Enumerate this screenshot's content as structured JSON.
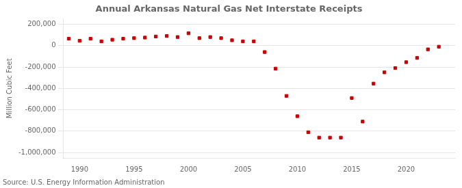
{
  "chart_data": {
    "type": "scatter",
    "title": "Annual Arkansas Natural Gas Net Interstate Receipts",
    "ylabel": "Million Cubic Feet",
    "annotation": "Source: U.S. Energy Information Administration",
    "x": [
      1989,
      1990,
      1991,
      1992,
      1993,
      1994,
      1995,
      1996,
      1997,
      1998,
      1999,
      2000,
      2001,
      2002,
      2003,
      2004,
      2005,
      2006,
      2007,
      2008,
      2009,
      2010,
      2011,
      2012,
      2013,
      2014,
      2015,
      2016,
      2017,
      2018,
      2019,
      2020,
      2021,
      2022,
      2023
    ],
    "values": [
      65000,
      45000,
      65000,
      40000,
      55000,
      65000,
      70000,
      75000,
      85000,
      90000,
      80000,
      115000,
      70000,
      80000,
      70000,
      50000,
      40000,
      40000,
      -60000,
      -215000,
      -470000,
      -660000,
      -810000,
      -860000,
      -860000,
      -860000,
      -490000,
      -710000,
      -355000,
      -250000,
      -210000,
      -155000,
      -115000,
      -35000,
      -10000
    ],
    "color": "#cc0000",
    "marker": "square",
    "xlim": [
      1988.5,
      2024.5
    ],
    "xticks": [
      1990,
      1995,
      2000,
      2005,
      2010,
      2015,
      2020
    ],
    "ylim": [
      -1050000,
      250000
    ],
    "yticks": [
      {
        "value": -1000000,
        "label": "-1,000,000"
      },
      {
        "value": -800000,
        "label": "-800,000"
      },
      {
        "value": -600000,
        "label": "-600,000"
      },
      {
        "value": -400000,
        "label": "-400,000"
      },
      {
        "value": -200000,
        "label": "-200,000"
      },
      0,
      {
        "value": 200000,
        "label": "200,000"
      }
    ],
    "grid": true
  }
}
